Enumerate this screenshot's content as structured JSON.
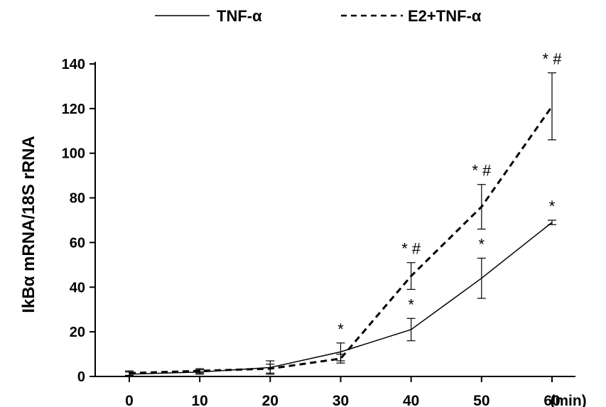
{
  "chart_data": {
    "type": "line",
    "x": [
      0,
      10,
      20,
      30,
      40,
      50,
      60
    ],
    "xticks": [
      "0",
      "10",
      "20",
      "30",
      "40",
      "50",
      "60"
    ],
    "xunit": "(min)",
    "xlim": [
      0,
      60
    ],
    "ylabel": "IkBα mRNA/18S rRNA",
    "ylim": [
      0,
      140
    ],
    "yticks": [
      "0",
      "20",
      "40",
      "60",
      "80",
      "100",
      "120",
      "140"
    ],
    "grid": false,
    "legend_position": "top",
    "series": [
      {
        "name": "TNF-α",
        "style": "solid",
        "values": [
          1,
          2,
          4,
          11,
          21,
          44,
          69
        ],
        "error": [
          1,
          1,
          3,
          4,
          5,
          9,
          1
        ],
        "annotations": [
          "",
          "",
          "",
          "*",
          "*",
          "*",
          "*"
        ]
      },
      {
        "name": "E2+TNF-α",
        "style": "dashed",
        "values": [
          1.5,
          2.5,
          3.5,
          8,
          45,
          76,
          121
        ],
        "error": [
          1,
          1,
          2,
          2,
          6,
          10,
          15
        ],
        "annotations": [
          "",
          "",
          "",
          "",
          "* #",
          "* #",
          "* #"
        ]
      }
    ]
  }
}
